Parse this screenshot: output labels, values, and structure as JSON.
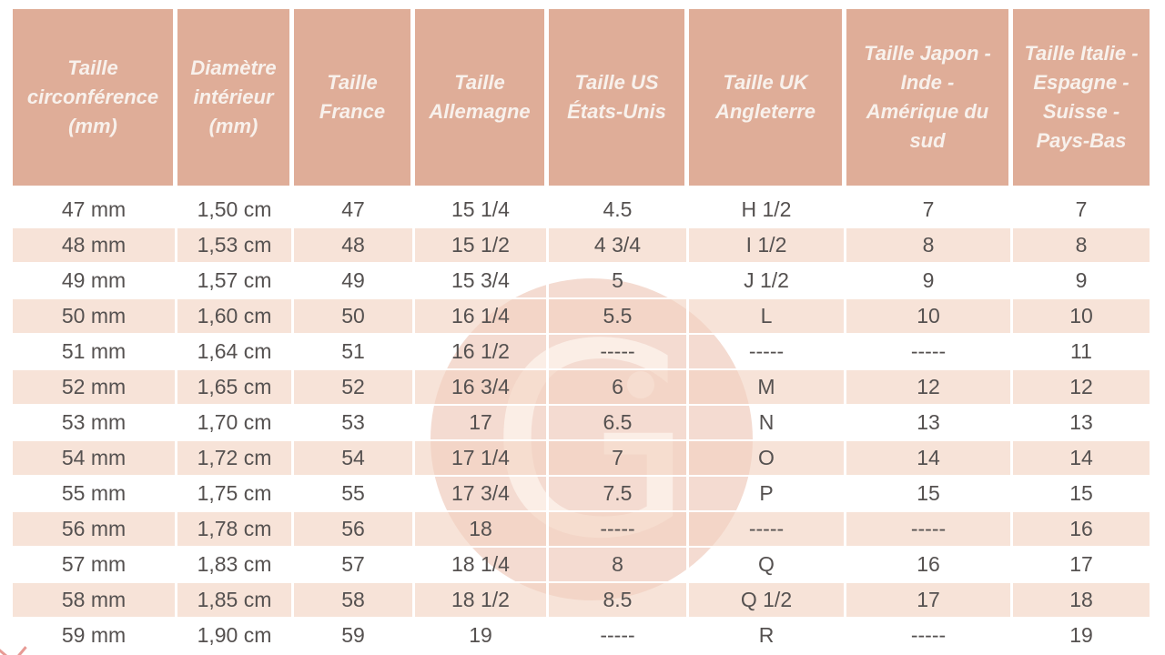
{
  "table": {
    "headers": [
      "Taille circonférence (mm)",
      "Diamètre intérieur (mm)",
      "Taille France",
      "Taille Allemagne",
      "Taille US États-Unis",
      "Taille UK Angleterre",
      "Taille Japon - Inde - Amérique du sud",
      "Taille Italie - Espagne - Suisse - Pays-Bas"
    ],
    "rows": [
      [
        "47 mm",
        "1,50 cm",
        "47",
        "15 1/4",
        "4.5",
        "H 1/2",
        "7",
        "7"
      ],
      [
        "48 mm",
        "1,53 cm",
        "48",
        "15 1/2",
        "4 3/4",
        "I 1/2",
        "8",
        "8"
      ],
      [
        "49 mm",
        "1,57 cm",
        "49",
        "15 3/4",
        "5",
        "J 1/2",
        "9",
        "9"
      ],
      [
        "50 mm",
        "1,60 cm",
        "50",
        "16 1/4",
        "5.5",
        "L",
        "10",
        "10"
      ],
      [
        "51 mm",
        "1,64 cm",
        "51",
        "16 1/2",
        "-----",
        "-----",
        "-----",
        "11"
      ],
      [
        "52 mm",
        "1,65 cm",
        "52",
        "16 3/4",
        "6",
        "M",
        "12",
        "12"
      ],
      [
        "53 mm",
        "1,70 cm",
        "53",
        "17",
        "6.5",
        "N",
        "13",
        "13"
      ],
      [
        "54 mm",
        "1,72 cm",
        "54",
        "17 1/4",
        "7",
        "O",
        "14",
        "14"
      ],
      [
        "55 mm",
        "1,75 cm",
        "55",
        "17 3/4",
        "7.5",
        "P",
        "15",
        "15"
      ],
      [
        "56 mm",
        "1,78 cm",
        "56",
        "18",
        "-----",
        "-----",
        "-----",
        "16"
      ],
      [
        "57 mm",
        "1,83 cm",
        "57",
        "18 1/4",
        "8",
        "Q",
        "16",
        "17"
      ],
      [
        "58 mm",
        "1,85 cm",
        "58",
        "18 1/2",
        "8.5",
        "Q 1/2",
        "17",
        "18"
      ],
      [
        "59 mm",
        "1,90 cm",
        "59",
        "19",
        "-----",
        "R",
        "-----",
        "19"
      ]
    ]
  },
  "watermark": {
    "letter": "G"
  },
  "colors": {
    "header_bg": "#dfad98",
    "header_text": "#f8f1ec",
    "row_stripe": "#f7e2d8",
    "row_plain": "#ffffff",
    "body_text": "#555150",
    "watermark": "#e6b098",
    "corner_mark": "#e79a94"
  }
}
